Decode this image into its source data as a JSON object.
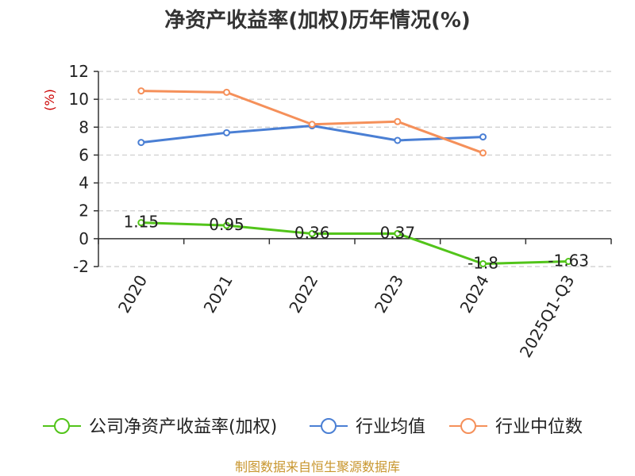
{
  "chart_data": {
    "type": "line",
    "title": "净资产收益率(加权)历年情况(%)",
    "ylabel": "(%)",
    "xlabel": "",
    "categories": [
      "2020",
      "2021",
      "2022",
      "2023",
      "2024",
      "2025Q1-Q3"
    ],
    "ylim": [
      -2,
      12
    ],
    "yticks": [
      -2,
      0,
      2,
      4,
      6,
      8,
      10,
      12
    ],
    "grid": true,
    "legend_position": "bottom",
    "series": [
      {
        "name": "公司净资产收益率(加权)",
        "color": "#52c41a",
        "values": [
          1.15,
          0.95,
          0.36,
          0.37,
          -1.8,
          -1.63
        ],
        "labels": [
          "1.15",
          "0.95",
          "0.36",
          "0.37",
          "-1.8",
          "-1.63"
        ]
      },
      {
        "name": "行业均值",
        "color": "#4a7fd4",
        "values": [
          6.9,
          7.6,
          8.1,
          7.05,
          7.3,
          null
        ]
      },
      {
        "name": "行业中位数",
        "color": "#f5905a",
        "values": [
          10.6,
          10.5,
          8.2,
          8.4,
          6.15,
          null
        ]
      }
    ]
  },
  "source": "制图数据来自恒生聚源数据库",
  "colors": {
    "title": "#333333",
    "axis": "#333333",
    "grid": "#cccccc",
    "unit": "#cc0000",
    "source": "#c8962e"
  }
}
